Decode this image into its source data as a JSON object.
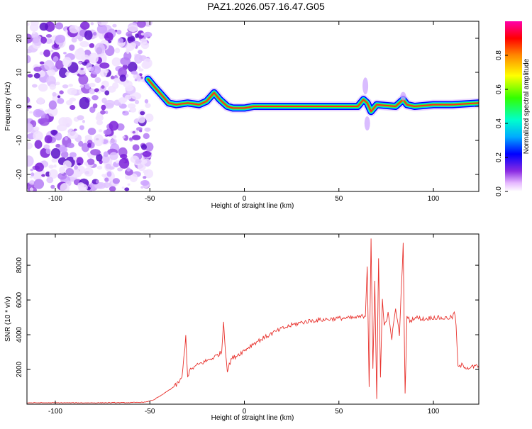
{
  "title": "PAZ1.2026.057.16.47.G05",
  "chart_data": [
    {
      "type": "heatmap",
      "xlabel": "Height of straight line (km)",
      "ylabel": "Frequency (Hz)",
      "xlim": [
        -115,
        124
      ],
      "ylim": [
        -25,
        25
      ],
      "xticks": [
        -100,
        -50,
        0,
        50,
        100
      ],
      "yticks": [
        -20,
        -10,
        0,
        10,
        20
      ],
      "noise_region": [
        -115,
        -50
      ],
      "ridge": [
        [
          -51,
          8
        ],
        [
          -48,
          6
        ],
        [
          -44,
          3.5
        ],
        [
          -40,
          1
        ],
        [
          -36,
          0.5
        ],
        [
          -30,
          1
        ],
        [
          -24,
          0.5
        ],
        [
          -20,
          1.5
        ],
        [
          -16,
          4
        ],
        [
          -13,
          2
        ],
        [
          -9,
          0
        ],
        [
          -6,
          -0.5
        ],
        [
          0,
          -0.5
        ],
        [
          5,
          0
        ],
        [
          20,
          0
        ],
        [
          40,
          0
        ],
        [
          60,
          0
        ],
        [
          63,
          2
        ],
        [
          65,
          1
        ],
        [
          67,
          -1.5
        ],
        [
          70,
          0.5
        ],
        [
          80,
          0
        ],
        [
          84,
          2
        ],
        [
          86,
          0.5
        ],
        [
          90,
          0
        ],
        [
          100,
          0.5
        ],
        [
          110,
          0.5
        ],
        [
          124,
          1
        ]
      ],
      "colorbar": {
        "label": "Normalized spectral amplitude",
        "ticks": [
          "0.0",
          "0.2",
          "0.4",
          "0.6",
          "0.8"
        ],
        "range": [
          0,
          1
        ]
      }
    },
    {
      "type": "line",
      "xlabel": "Height of straight line (km)",
      "ylabel": "SNR (10 * v/v)",
      "xlim": [
        -115,
        124
      ],
      "ylim": [
        0,
        9800
      ],
      "xticks": [
        -100,
        -50,
        0,
        50,
        100
      ],
      "yticks": [
        2000,
        4000,
        6000,
        8000
      ],
      "color": "#e8312c",
      "series": [
        {
          "name": "SNR",
          "x": [
            -115,
            -100,
            -80,
            -60,
            -52,
            -48,
            -44,
            -40,
            -36,
            -33,
            -31,
            -30,
            -29,
            -27,
            -24,
            -20,
            -16,
            -12,
            -11,
            -10,
            -9,
            -7,
            -4,
            0,
            5,
            10,
            15,
            20,
            25,
            30,
            35,
            40,
            45,
            50,
            55,
            60,
            64,
            65,
            66,
            67,
            68,
            69,
            70,
            71,
            72,
            73,
            74,
            76,
            78,
            80,
            82,
            84,
            85,
            86,
            88,
            90,
            95,
            100,
            105,
            110,
            111,
            112,
            113,
            115,
            118,
            124
          ],
          "values": [
            80,
            80,
            80,
            90,
            120,
            250,
            500,
            800,
            1100,
            1500,
            3900,
            1600,
            1900,
            2100,
            2300,
            2500,
            2700,
            3000,
            4800,
            3100,
            1900,
            2600,
            2800,
            3100,
            3500,
            3800,
            4100,
            4350,
            4550,
            4700,
            4800,
            4850,
            4900,
            4950,
            4950,
            5000,
            5100,
            8000,
            1000,
            9600,
            2000,
            7000,
            300,
            8500,
            1500,
            6000,
            4500,
            5200,
            3800,
            5500,
            4000,
            9200,
            600,
            5000,
            4800,
            5000,
            4900,
            5000,
            4950,
            5000,
            5300,
            4600,
            2100,
            2250,
            2100,
            2200
          ]
        }
      ]
    }
  ]
}
